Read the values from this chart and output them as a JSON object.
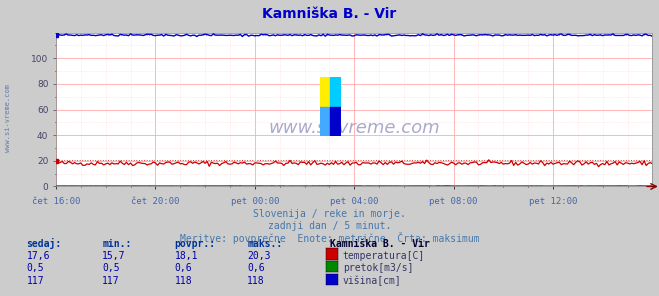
{
  "title": "Kamniška B. - Vir",
  "title_color": "#0000cc",
  "bg_color": "#cccccc",
  "plot_bg_color": "#ffffff",
  "grid_major_color": "#ffaaaa",
  "grid_minor_color": "#ffcccc",
  "xlabel_color": "#4466aa",
  "ylim": [
    0,
    120
  ],
  "xlim": [
    0,
    288
  ],
  "yticks": [
    0,
    20,
    40,
    60,
    80,
    100
  ],
  "xtick_labels": [
    "čet 16:00",
    "čet 20:00",
    "pet 00:00",
    "pet 04:00",
    "pet 08:00",
    "pet 12:00"
  ],
  "xtick_positions": [
    0,
    48,
    96,
    144,
    192,
    240
  ],
  "subtitle1": "Slovenija / reke in morje.",
  "subtitle2": "zadnji dan / 5 minut.",
  "subtitle3": "Meritve: povprečne  Enote: metrične  Črta: maksimum",
  "subtitle_color": "#4477aa",
  "watermark": "www.si-vreme.com",
  "watermark_color": "#aaaacc",
  "legend_title": "Kamniška B. - Vir",
  "legend_title_color": "#000033",
  "legend_color": "#333366",
  "table_header": [
    "sedaj:",
    "min.:",
    "povpr.:",
    "maks.:"
  ],
  "table_header_color": "#003399",
  "table_data": [
    [
      "17,6",
      "15,7",
      "18,1",
      "20,3"
    ],
    [
      "0,5",
      "0,5",
      "0,6",
      "0,6"
    ],
    [
      "117",
      "117",
      "118",
      "118"
    ]
  ],
  "table_data_color": "#0000aa",
  "series": [
    {
      "name": "temperatura[C]",
      "color": "#cc0000",
      "base": 18.1,
      "noise": 0.9,
      "swatch": "#cc0000"
    },
    {
      "name": "pretok[m3/s]",
      "color": "#008800",
      "base": 0.5,
      "noise": 0.05,
      "swatch": "#008800"
    },
    {
      "name": "višina[cm]",
      "color": "#0000cc",
      "base": 118,
      "noise": 0.4,
      "swatch": "#0000cc"
    }
  ],
  "sidebar_text": "www.si-vreme.com",
  "sidebar_color": "#6677aa",
  "arrow_color": "#880000"
}
